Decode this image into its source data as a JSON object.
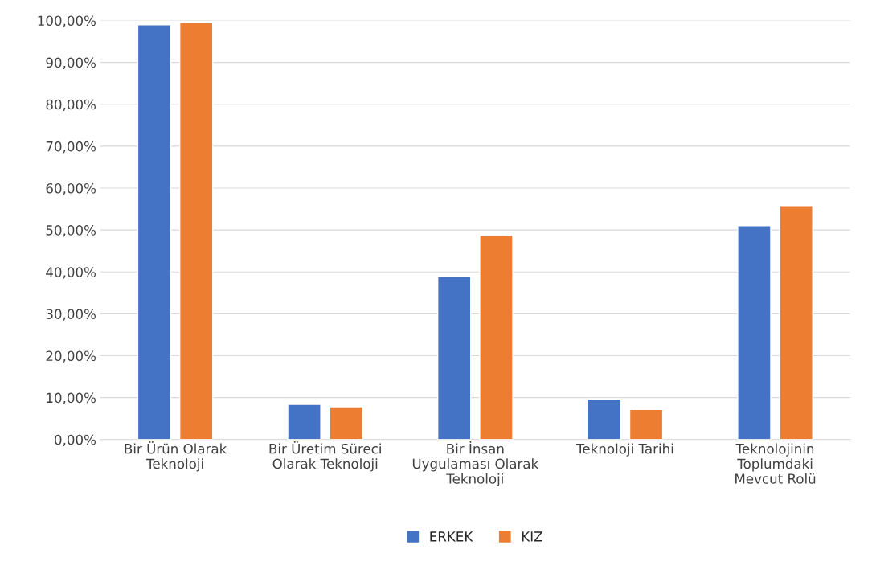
{
  "chart_data": {
    "type": "bar",
    "categories": [
      "Bir Ürün Olarak\nTeknoloji",
      "Bir Üretim Süreci\nOlarak Teknoloji",
      "Bir İnsan\nUygulaması Olarak\nTeknoloji",
      "Teknoloji Tarihi",
      "Teknolojinin\nToplumdaki\nMevcut Rolü"
    ],
    "series": [
      {
        "name": "ERKEK",
        "color": "#4472c4",
        "values": [
          99.0,
          8.4,
          39.0,
          9.7,
          51.0
        ]
      },
      {
        "name": "KIZ",
        "color": "#ed7d31",
        "values": [
          99.6,
          7.8,
          48.8,
          7.2,
          55.8
        ]
      }
    ],
    "ylim": [
      0,
      100
    ],
    "yticks": [
      {
        "value": 0,
        "label": "0,00%"
      },
      {
        "value": 10,
        "label": "10,00%"
      },
      {
        "value": 20,
        "label": "20,00%"
      },
      {
        "value": 30,
        "label": "30,00%"
      },
      {
        "value": 40,
        "label": "40,00%"
      },
      {
        "value": 50,
        "label": "50,00%"
      },
      {
        "value": 60,
        "label": "60,00%"
      },
      {
        "value": 70,
        "label": "70,00%"
      },
      {
        "value": 80,
        "label": "80,00%"
      },
      {
        "value": 90,
        "label": "90,00%"
      },
      {
        "value": 100,
        "label": "100,00%"
      }
    ],
    "grid": "y",
    "legend": "bottom"
  }
}
